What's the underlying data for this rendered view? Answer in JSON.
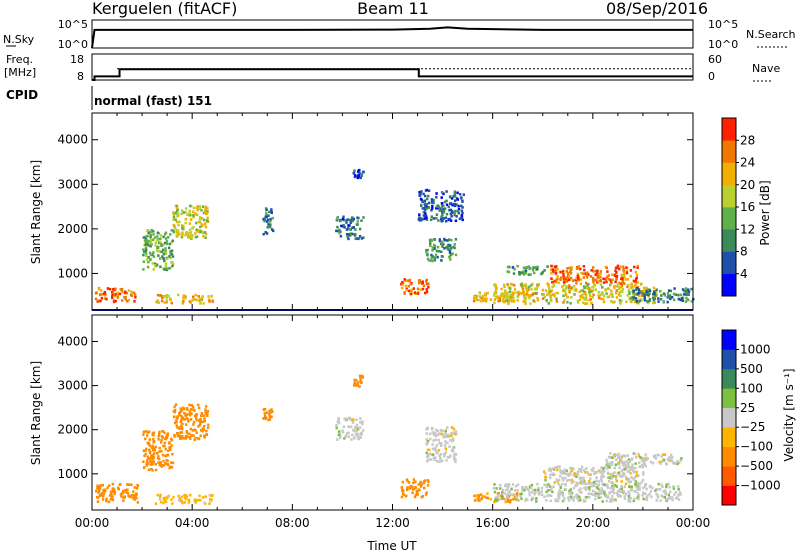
{
  "header": {
    "station": "Kerguelen (fitACF)",
    "beam": "Beam 11",
    "date": "08/Sep/2016"
  },
  "panels": {
    "nsky": {
      "label": "N.Sky",
      "tick_top": "10^5",
      "tick_bottom": "10^0"
    },
    "nsearch": {
      "label": "N.Search",
      "tick_top": "10^5",
      "tick_bottom": "10^0"
    },
    "freq": {
      "label_line1": "Freq.",
      "label_line2": "[MHz]",
      "tick_top": "18",
      "tick_bottom": "8"
    },
    "nave": {
      "label": "Nave",
      "tick_top": "60",
      "tick_bottom": "0"
    },
    "cpid": {
      "label": "CPID",
      "mode": "normal (fast) 151"
    }
  },
  "colors": {
    "power": [
      "#0000ff",
      "#1f4fa8",
      "#3a8a5a",
      "#5fb04a",
      "#b8d030",
      "#f0b000",
      "#f07800",
      "#ff2000"
    ],
    "velocity": [
      "#ff0000",
      "#ff5a00",
      "#ff8c00",
      "#ffb400",
      "#c8c8c8",
      "#7cc040",
      "#3a8a5a",
      "#1f4fa8",
      "#0000ff"
    ]
  },
  "chart_data": [
    {
      "type": "heatmap",
      "name": "power",
      "ylabel": "Slant Range [km]",
      "xlabel": "",
      "x_range_hours": [
        0,
        24
      ],
      "ylim": [
        180,
        4600
      ],
      "y_ticks": [
        1000,
        2000,
        3000,
        4000
      ],
      "colorbar": {
        "label": "Power [dB]",
        "range": [
          0,
          32
        ],
        "ticks": [
          4,
          8,
          12,
          16,
          20,
          24,
          28
        ]
      },
      "regions": [
        {
          "t0": 0.1,
          "t1": 1.7,
          "r0": 380,
          "r1": 700,
          "value": 27
        },
        {
          "t0": 2.0,
          "t1": 3.2,
          "r0": 1100,
          "r1": 2000,
          "value": 14
        },
        {
          "t0": 3.2,
          "t1": 4.6,
          "r0": 1800,
          "r1": 2550,
          "value": 19
        },
        {
          "t0": 2.5,
          "t1": 4.8,
          "r0": 350,
          "r1": 550,
          "value": 22
        },
        {
          "t0": 6.8,
          "t1": 7.2,
          "r0": 1900,
          "r1": 2500,
          "value": 9
        },
        {
          "t0": 9.7,
          "t1": 10.8,
          "r0": 1800,
          "r1": 2300,
          "value": 8
        },
        {
          "t0": 10.4,
          "t1": 10.8,
          "r0": 3150,
          "r1": 3350,
          "value": 5
        },
        {
          "t0": 12.3,
          "t1": 13.4,
          "r0": 550,
          "r1": 900,
          "value": 26
        },
        {
          "t0": 13.3,
          "t1": 14.5,
          "r0": 1300,
          "r1": 1800,
          "value": 11
        },
        {
          "t0": 13.0,
          "t1": 14.8,
          "r0": 2200,
          "r1": 2900,
          "value": 7
        },
        {
          "t0": 15.2,
          "t1": 16.8,
          "r0": 380,
          "r1": 600,
          "value": 22
        },
        {
          "t0": 16.5,
          "t1": 18.2,
          "r0": 1000,
          "r1": 1200,
          "value": 12
        },
        {
          "t0": 18.2,
          "t1": 21.8,
          "r0": 800,
          "r1": 1200,
          "value": 27
        },
        {
          "t0": 16.0,
          "t1": 22.5,
          "r0": 350,
          "r1": 800,
          "value": 20
        },
        {
          "t0": 21.5,
          "t1": 24.0,
          "r0": 380,
          "r1": 700,
          "value": 9
        }
      ],
      "ground_line_range_km": 180
    },
    {
      "type": "heatmap",
      "name": "velocity",
      "ylabel": "Slant Range [km]",
      "xlabel": "Time UT",
      "x_ticks": [
        "00:00",
        "04:00",
        "08:00",
        "12:00",
        "16:00",
        "20:00",
        "00:00"
      ],
      "x_range_hours": [
        0,
        24
      ],
      "ylim": [
        180,
        4600
      ],
      "y_ticks": [
        1000,
        2000,
        3000,
        4000
      ],
      "colorbar": {
        "label": "Velocity [m s⁻¹]",
        "levels": [
          "1000",
          "500",
          "100",
          "25",
          "−25",
          "−100",
          "−500",
          "−1000"
        ]
      },
      "regions": [
        {
          "t0": 0.1,
          "t1": 1.8,
          "r0": 380,
          "r1": 800,
          "value": -150
        },
        {
          "t0": 2.0,
          "t1": 3.2,
          "r0": 1100,
          "r1": 2000,
          "value": -300
        },
        {
          "t0": 3.2,
          "t1": 4.6,
          "r0": 1800,
          "r1": 2600,
          "value": -400
        },
        {
          "t0": 2.5,
          "t1": 4.8,
          "r0": 350,
          "r1": 550,
          "value": -50
        },
        {
          "t0": 6.8,
          "t1": 7.2,
          "r0": 2200,
          "r1": 2500,
          "value": -300
        },
        {
          "t0": 9.7,
          "t1": 10.8,
          "r0": 1800,
          "r1": 2300,
          "value": 0
        },
        {
          "t0": 10.4,
          "t1": 10.8,
          "r0": 3000,
          "r1": 3250,
          "value": -400
        },
        {
          "t0": 12.3,
          "t1": 13.4,
          "r0": 500,
          "r1": 900,
          "value": -200
        },
        {
          "t0": 13.3,
          "t1": 14.5,
          "r0": 1300,
          "r1": 2100,
          "value": 0
        },
        {
          "t0": 15.2,
          "t1": 17.0,
          "r0": 380,
          "r1": 600,
          "value": -120
        },
        {
          "t0": 18.0,
          "t1": 22.0,
          "r0": 800,
          "r1": 1200,
          "value": 0
        },
        {
          "t0": 16.0,
          "t1": 23.5,
          "r0": 400,
          "r1": 800,
          "value": 10
        },
        {
          "t0": 20.5,
          "t1": 23.5,
          "r0": 1200,
          "r1": 1500,
          "value": 0
        }
      ]
    }
  ],
  "series": {
    "nsky": {
      "type": "line",
      "x_hours": [
        0,
        0.1,
        4,
        8,
        12,
        13.5,
        14.2,
        15,
        18,
        20,
        24
      ],
      "values": [
        1,
        3000,
        3000,
        3000,
        3500,
        5000,
        9000,
        5000,
        3000,
        3000,
        3000
      ]
    },
    "freq_mhz": {
      "type": "step",
      "x_hours": [
        0,
        0.1,
        0.9,
        1.1,
        13.0,
        13.05,
        24
      ],
      "values": [
        8,
        9.5,
        9.5,
        12.5,
        12.5,
        9.5,
        9.5
      ]
    },
    "nave": {
      "type": "constant",
      "value": 28
    }
  }
}
